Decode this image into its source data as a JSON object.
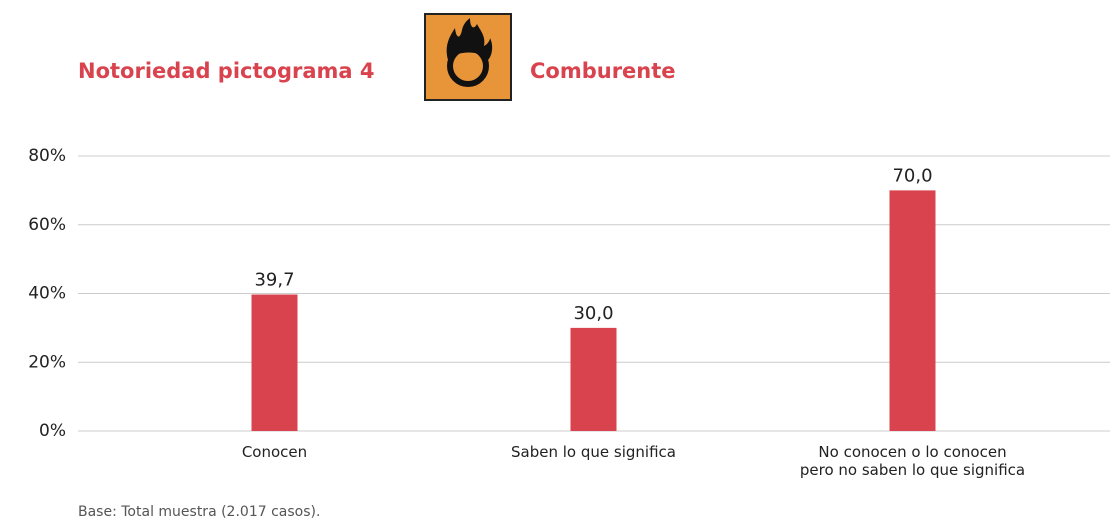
{
  "chart_data": {
    "type": "bar",
    "title": "Notoriedad pictograma 4",
    "subtitle": "Comburente",
    "categories": [
      "Conocen",
      "Saben lo que significa",
      "No conocen o lo conocen\npero no saben lo que significa"
    ],
    "values": [
      39.7,
      30.0,
      70.0
    ],
    "value_labels": [
      "39,7",
      "30,0",
      "70,0"
    ],
    "color": "#d9434e",
    "ylim": [
      0,
      80
    ],
    "yticks": [
      {
        "value": 0,
        "label": "0%"
      },
      {
        "value": 20,
        "label": "20%"
      },
      {
        "value": 40,
        "label": "40%"
      },
      {
        "value": 60,
        "label": "60%"
      },
      {
        "value": 80,
        "label": "80%"
      }
    ],
    "grid": true,
    "note": "Base: Total muestra (2.017 casos)."
  }
}
